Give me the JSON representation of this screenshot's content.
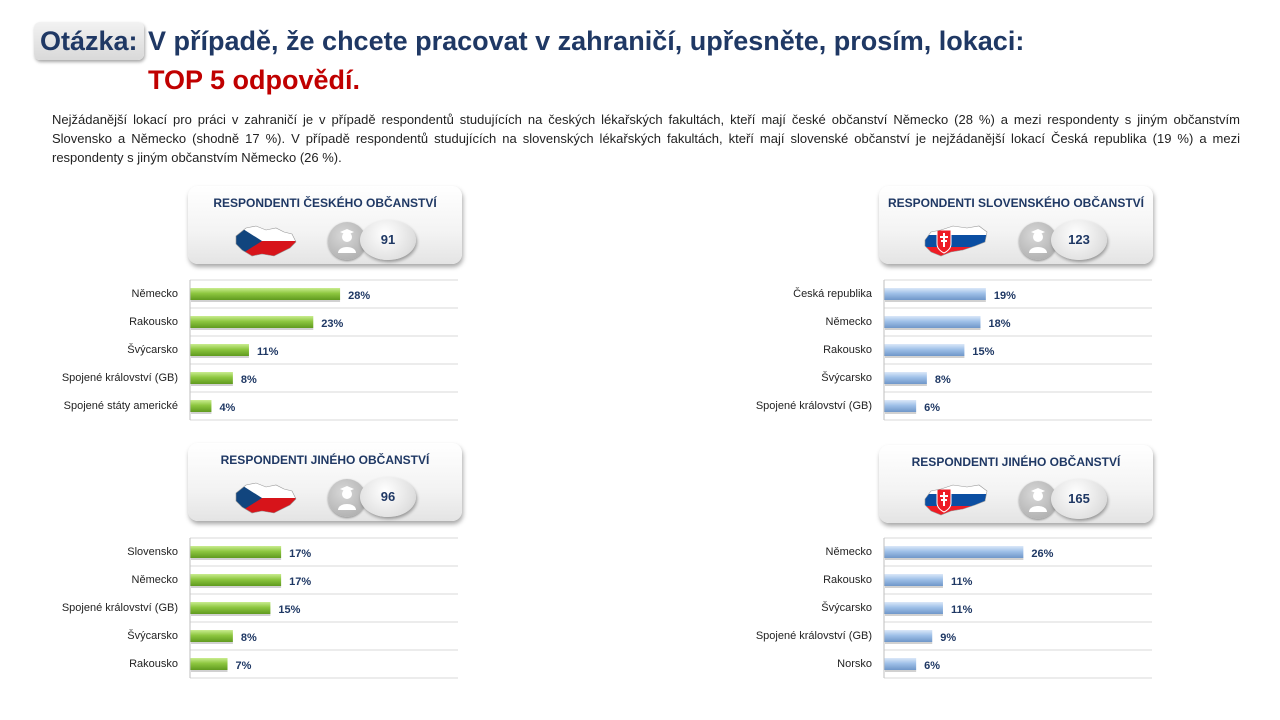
{
  "header": {
    "label": "Otázka:",
    "question": "V případě, že chcete pracovat v zahraničí, upřesněte, prosím, lokaci:",
    "subtitle": "TOP 5 odpovědí."
  },
  "description": "Nejžádanější lokací pro práci v zahraničí je v případě respondentů studujících na českých lékařských fakultách, kteří mají české občanství Německo (28 %) a mezi respondenty s jiným občanstvím Slovensko a Německo (shodně 17 %). V případě respondentů studujících na slovenských lékařských fakultách, kteří mají slovenské občanství je nejžádanější lokací Česká republika (19 %) a mezi respondenty s jiným občanstvím Německo (26 %).",
  "colors": {
    "green": "#8dc63f",
    "blue": "#8db3e2",
    "title": "#1f3864",
    "accent": "#c00000"
  },
  "chart_data": [
    {
      "type": "bar",
      "title": "RESPONDENTI ČESKÉHO OBČANSTVÍ",
      "count": "91",
      "flag": "czech-flag-map",
      "color": "green",
      "categories": [
        "Německo",
        "Rakousko",
        "Švýcarsko",
        "Spojené království (GB)",
        "Spojené státy americké"
      ],
      "values": [
        28,
        23,
        11,
        8,
        4
      ],
      "value_labels": [
        "28%",
        "23%",
        "11%",
        "8%",
        "4%"
      ],
      "xlim": [
        0,
        50
      ]
    },
    {
      "type": "bar",
      "title": "RESPONDENTI SLOVENSKÉHO OBČANSTVÍ",
      "count": "123",
      "flag": "slovak-flag-map",
      "color": "blue",
      "categories": [
        "Česká republika",
        "Německo",
        "Rakousko",
        "Švýcarsko",
        "Spojené království (GB)"
      ],
      "values": [
        19,
        18,
        15,
        8,
        6
      ],
      "value_labels": [
        "19%",
        "18%",
        "15%",
        "8%",
        "6%"
      ],
      "xlim": [
        0,
        50
      ]
    },
    {
      "type": "bar",
      "title": "RESPONDENTI JINÉHO OBČANSTVÍ",
      "count": "96",
      "flag": "czech-flag-map",
      "color": "green",
      "categories": [
        "Slovensko",
        "Německo",
        "Spojené království (GB)",
        "Švýcarsko",
        "Rakousko"
      ],
      "values": [
        17,
        17,
        15,
        8,
        7
      ],
      "value_labels": [
        "17%",
        "17%",
        "15%",
        "8%",
        "7%"
      ],
      "xlim": [
        0,
        50
      ]
    },
    {
      "type": "bar",
      "title": "RESPONDENTI JINÉHO OBČANSTVÍ",
      "count": "165",
      "flag": "slovak-flag-map",
      "color": "blue",
      "categories": [
        "Německo",
        "Rakousko",
        "Švýcarsko",
        "Spojené království (GB)",
        "Norsko"
      ],
      "values": [
        26,
        11,
        11,
        9,
        6
      ],
      "value_labels": [
        "26%",
        "11%",
        "11%",
        "9%",
        "6%"
      ],
      "xlim": [
        0,
        50
      ]
    }
  ]
}
